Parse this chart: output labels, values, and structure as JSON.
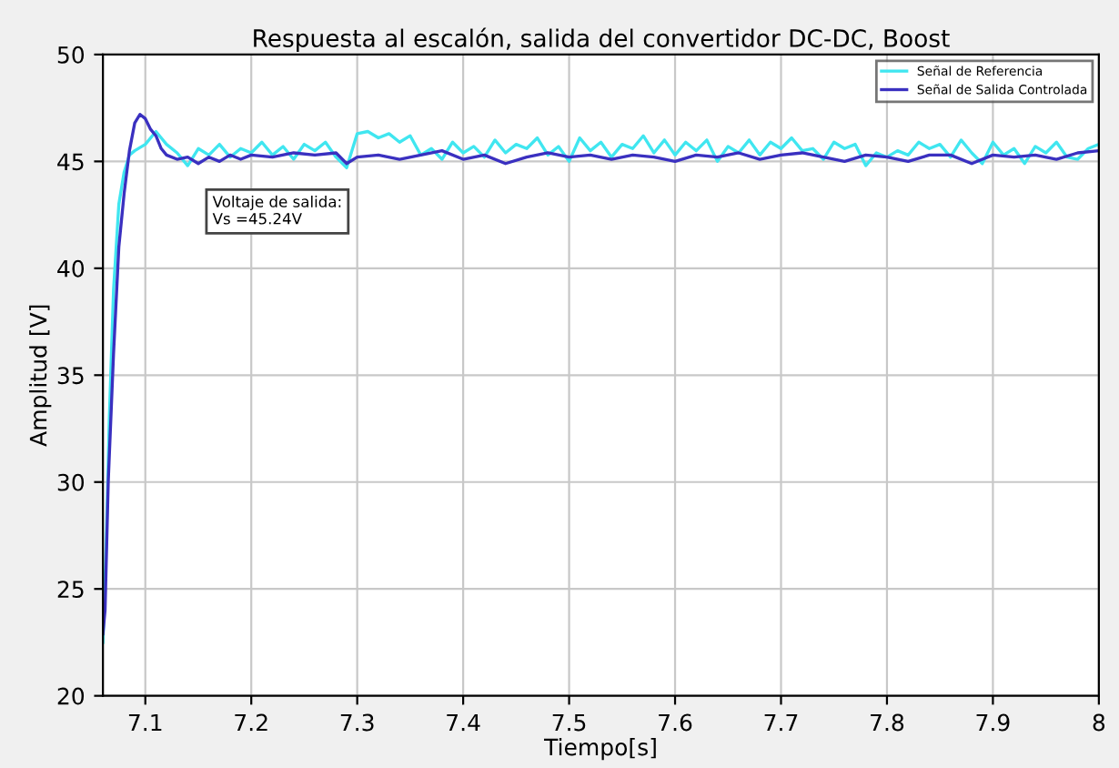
{
  "chart_data": {
    "type": "line",
    "title": "Respuesta al escalón, salida del convertidor DC-DC, Boost",
    "xlabel": "Tiempo[s]",
    "ylabel": "Amplitud [V]",
    "annotations": [
      "Voltaje de salida:\nVs =45.24V"
    ],
    "xlim": [
      7.06,
      8
    ],
    "xticks": [
      7.1,
      7.2,
      7.3,
      7.4,
      7.5,
      7.6,
      7.7,
      7.8,
      7.9,
      8
    ],
    "ylim": [
      20,
      50
    ],
    "yticks": [
      20,
      25,
      30,
      35,
      40,
      45,
      50
    ],
    "grid": true,
    "legend": "top right",
    "line_style": "solid",
    "marker": "none",
    "series": [
      {
        "name": "Señal de Referencia",
        "color": "#40e6f0",
        "x": [
          7.06,
          7.063,
          7.066,
          7.07,
          7.075,
          7.08,
          7.085,
          7.09,
          7.1,
          7.11,
          7.12,
          7.13,
          7.14,
          7.15,
          7.16,
          7.17,
          7.18,
          7.19,
          7.2,
          7.21,
          7.22,
          7.23,
          7.24,
          7.25,
          7.26,
          7.27,
          7.28,
          7.29,
          7.3,
          7.31,
          7.32,
          7.33,
          7.34,
          7.35,
          7.36,
          7.37,
          7.38,
          7.39,
          7.4,
          7.41,
          7.42,
          7.43,
          7.44,
          7.45,
          7.46,
          7.47,
          7.48,
          7.49,
          7.5,
          7.51,
          7.52,
          7.53,
          7.54,
          7.55,
          7.56,
          7.57,
          7.58,
          7.59,
          7.6,
          7.61,
          7.62,
          7.63,
          7.64,
          7.65,
          7.66,
          7.67,
          7.68,
          7.69,
          7.7,
          7.71,
          7.72,
          7.73,
          7.74,
          7.75,
          7.76,
          7.77,
          7.78,
          7.79,
          7.8,
          7.81,
          7.82,
          7.83,
          7.84,
          7.85,
          7.86,
          7.87,
          7.88,
          7.89,
          7.9,
          7.91,
          7.92,
          7.93,
          7.94,
          7.95,
          7.96,
          7.97,
          7.98,
          7.99,
          8.0
        ],
        "values": [
          22.5,
          27,
          33,
          39,
          43,
          44.5,
          45.3,
          45.5,
          45.8,
          46.4,
          45.8,
          45.4,
          44.8,
          45.6,
          45.3,
          45.8,
          45.2,
          45.6,
          45.4,
          45.9,
          45.3,
          45.7,
          45.1,
          45.8,
          45.5,
          45.9,
          45.2,
          44.7,
          46.3,
          46.4,
          46.1,
          46.3,
          45.9,
          46.2,
          45.3,
          45.6,
          45.1,
          45.9,
          45.4,
          45.7,
          45.2,
          46.0,
          45.4,
          45.8,
          45.6,
          46.1,
          45.3,
          45.7,
          45.0,
          46.1,
          45.5,
          45.9,
          45.2,
          45.8,
          45.6,
          46.2,
          45.4,
          46.0,
          45.3,
          45.9,
          45.5,
          46.0,
          45.0,
          45.7,
          45.4,
          46.0,
          45.3,
          45.9,
          45.6,
          46.1,
          45.5,
          45.6,
          45.1,
          45.9,
          45.6,
          45.8,
          44.8,
          45.4,
          45.2,
          45.5,
          45.3,
          45.9,
          45.6,
          45.8,
          45.2,
          46.0,
          45.4,
          44.9,
          45.9,
          45.3,
          45.6,
          44.9,
          45.7,
          45.4,
          45.9,
          45.2,
          45.1,
          45.6,
          45.8
        ]
      },
      {
        "name": "Señal de Salida Controlada",
        "color": "#3a30c0",
        "x": [
          7.06,
          7.062,
          7.065,
          7.07,
          7.075,
          7.08,
          7.085,
          7.09,
          7.095,
          7.1,
          7.105,
          7.11,
          7.115,
          7.12,
          7.13,
          7.14,
          7.15,
          7.16,
          7.17,
          7.18,
          7.19,
          7.2,
          7.22,
          7.24,
          7.26,
          7.28,
          7.29,
          7.3,
          7.32,
          7.34,
          7.36,
          7.38,
          7.4,
          7.42,
          7.44,
          7.46,
          7.48,
          7.5,
          7.52,
          7.54,
          7.56,
          7.58,
          7.6,
          7.62,
          7.64,
          7.66,
          7.68,
          7.7,
          7.72,
          7.74,
          7.76,
          7.78,
          7.8,
          7.82,
          7.84,
          7.86,
          7.88,
          7.9,
          7.92,
          7.94,
          7.96,
          7.98,
          8.0
        ],
        "values": [
          22.9,
          24,
          30,
          36,
          41,
          43.5,
          45.5,
          46.8,
          47.2,
          47.0,
          46.5,
          46.2,
          45.6,
          45.3,
          45.1,
          45.2,
          44.9,
          45.2,
          45.0,
          45.3,
          45.1,
          45.3,
          45.2,
          45.4,
          45.3,
          45.4,
          44.9,
          45.2,
          45.3,
          45.1,
          45.3,
          45.5,
          45.1,
          45.3,
          44.9,
          45.2,
          45.4,
          45.2,
          45.3,
          45.1,
          45.3,
          45.2,
          45.0,
          45.3,
          45.2,
          45.4,
          45.1,
          45.3,
          45.4,
          45.2,
          45.0,
          45.3,
          45.2,
          45.0,
          45.3,
          45.3,
          44.9,
          45.3,
          45.2,
          45.3,
          45.1,
          45.4,
          45.5
        ]
      }
    ]
  }
}
